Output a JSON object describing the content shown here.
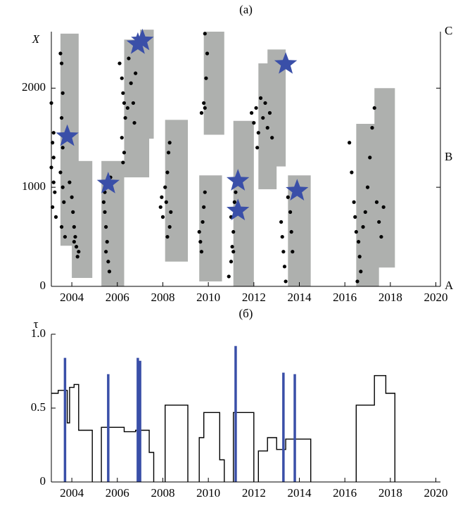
{
  "chart_data": [
    {
      "type": "scatter",
      "title": "(а)",
      "y_label": "X",
      "xlim": [
        2003.1,
        2020.2
      ],
      "xticks": [
        2004,
        2006,
        2008,
        2010,
        2012,
        2014,
        2016,
        2018,
        2020
      ],
      "ylim": [
        0,
        2570
      ],
      "yticks": [
        0,
        1000,
        2000
      ],
      "y2ticks": [
        {
          "value": 0,
          "label": "A"
        },
        {
          "value": 1300,
          "label": "B"
        },
        {
          "value": 2570,
          "label": "C"
        }
      ],
      "y2_minor_ticks": [
        1000,
        2000
      ],
      "rects": {
        "color": "#aeb0ae",
        "values": [
          [
            2003.5,
            2004.3,
            410,
            2550
          ],
          [
            2004.0,
            2004.9,
            85,
            1265
          ],
          [
            2005.3,
            2006.3,
            0,
            1265
          ],
          [
            2006.3,
            2007.4,
            1100,
            2490
          ],
          [
            2007.0,
            2007.6,
            1490,
            2590
          ],
          [
            2008.1,
            2009.1,
            250,
            1680
          ],
          [
            2009.6,
            2010.6,
            50,
            1120
          ],
          [
            2009.8,
            2010.7,
            1530,
            2570
          ],
          [
            2011.1,
            2012.0,
            0,
            1670
          ],
          [
            2012.2,
            2013.0,
            980,
            2250
          ],
          [
            2012.6,
            2013.4,
            1210,
            2390
          ],
          [
            2013.5,
            2014.5,
            0,
            1120
          ],
          [
            2016.5,
            2017.5,
            0,
            1640
          ],
          [
            2017.3,
            2018.2,
            190,
            2000
          ]
        ]
      },
      "points": {
        "color": "#000000",
        "values": [
          [
            2003.1,
            1850
          ],
          [
            2003.15,
            1450
          ],
          [
            2003.2,
            1300
          ],
          [
            2003.1,
            1200
          ],
          [
            2003.2,
            1050
          ],
          [
            2003.25,
            950
          ],
          [
            2003.15,
            800
          ],
          [
            2003.3,
            700
          ],
          [
            2003.2,
            1550
          ],
          [
            2003.5,
            2350
          ],
          [
            2003.55,
            2250
          ],
          [
            2003.6,
            1950
          ],
          [
            2003.55,
            1700
          ],
          [
            2003.6,
            1400
          ],
          [
            2003.5,
            1150
          ],
          [
            2003.6,
            1000
          ],
          [
            2003.65,
            850
          ],
          [
            2003.55,
            600
          ],
          [
            2003.7,
            500
          ],
          [
            2003.9,
            1050
          ],
          [
            2004.0,
            900
          ],
          [
            2004.05,
            750
          ],
          [
            2004.1,
            600
          ],
          [
            2004.15,
            500
          ],
          [
            2004.2,
            400
          ],
          [
            2004.25,
            300
          ],
          [
            2004.3,
            350
          ],
          [
            2004.1,
            450
          ],
          [
            2005.4,
            850
          ],
          [
            2005.45,
            750
          ],
          [
            2005.5,
            600
          ],
          [
            2005.55,
            450
          ],
          [
            2005.5,
            350
          ],
          [
            2005.6,
            250
          ],
          [
            2005.65,
            150
          ],
          [
            2005.45,
            950
          ],
          [
            2005.7,
            1100
          ],
          [
            2006.1,
            2250
          ],
          [
            2006.2,
            2100
          ],
          [
            2006.25,
            1950
          ],
          [
            2006.3,
            1850
          ],
          [
            2006.35,
            1700
          ],
          [
            2006.2,
            1500
          ],
          [
            2006.3,
            1350
          ],
          [
            2006.25,
            1250
          ],
          [
            2006.5,
            2300
          ],
          [
            2006.6,
            2050
          ],
          [
            2006.7,
            1850
          ],
          [
            2006.75,
            1650
          ],
          [
            2006.8,
            2150
          ],
          [
            2006.45,
            1800
          ],
          [
            2007.9,
            800
          ],
          [
            2007.95,
            900
          ],
          [
            2008.0,
            700
          ],
          [
            2008.1,
            1000
          ],
          [
            2008.15,
            850
          ],
          [
            2008.2,
            1150
          ],
          [
            2008.25,
            1350
          ],
          [
            2008.3,
            1450
          ],
          [
            2008.35,
            750
          ],
          [
            2008.2,
            500
          ],
          [
            2008.3,
            600
          ],
          [
            2009.6,
            550
          ],
          [
            2009.65,
            450
          ],
          [
            2009.7,
            350
          ],
          [
            2009.75,
            650
          ],
          [
            2009.8,
            800
          ],
          [
            2009.85,
            950
          ],
          [
            2009.7,
            1750
          ],
          [
            2009.8,
            1850
          ],
          [
            2009.85,
            1800
          ],
          [
            2009.9,
            2100
          ],
          [
            2009.95,
            2350
          ],
          [
            2009.85,
            2550
          ],
          [
            2010.9,
            100
          ],
          [
            2011.0,
            250
          ],
          [
            2011.05,
            400
          ],
          [
            2011.1,
            550
          ],
          [
            2011.0,
            700
          ],
          [
            2011.15,
            850
          ],
          [
            2011.2,
            950
          ],
          [
            2011.1,
            350
          ],
          [
            2011.25,
            1050
          ],
          [
            2011.9,
            1750
          ],
          [
            2012.0,
            1650
          ],
          [
            2012.1,
            1800
          ],
          [
            2012.2,
            1550
          ],
          [
            2012.3,
            1900
          ],
          [
            2012.4,
            1700
          ],
          [
            2012.5,
            1850
          ],
          [
            2012.6,
            1600
          ],
          [
            2012.7,
            1750
          ],
          [
            2012.8,
            1500
          ],
          [
            2012.15,
            1400
          ],
          [
            2013.2,
            650
          ],
          [
            2013.25,
            500
          ],
          [
            2013.3,
            350
          ],
          [
            2013.35,
            200
          ],
          [
            2013.4,
            50
          ],
          [
            2013.5,
            900
          ],
          [
            2013.6,
            750
          ],
          [
            2013.65,
            550
          ],
          [
            2013.7,
            350
          ],
          [
            2016.2,
            1450
          ],
          [
            2016.3,
            1150
          ],
          [
            2016.4,
            850
          ],
          [
            2016.45,
            700
          ],
          [
            2016.5,
            550
          ],
          [
            2016.6,
            450
          ],
          [
            2016.65,
            300
          ],
          [
            2016.7,
            150
          ],
          [
            2016.8,
            600
          ],
          [
            2016.9,
            750
          ],
          [
            2017.0,
            1000
          ],
          [
            2017.1,
            1300
          ],
          [
            2017.2,
            1600
          ],
          [
            2017.3,
            1800
          ],
          [
            2017.4,
            850
          ],
          [
            2017.5,
            650
          ],
          [
            2017.6,
            500
          ],
          [
            2017.7,
            800
          ],
          [
            2016.55,
            50
          ]
        ]
      },
      "stars": {
        "color": "#3a4fa8",
        "values": [
          [
            2003.8,
            1514
          ],
          [
            2005.6,
            1036
          ],
          [
            2006.9,
            2443
          ],
          [
            2007.1,
            2480
          ],
          [
            2011.3,
            1064
          ],
          [
            2011.3,
            764
          ],
          [
            2013.4,
            2243
          ],
          [
            2013.9,
            964
          ]
        ]
      }
    },
    {
      "type": "line",
      "title": "(б)",
      "y_label": "τ",
      "xlim": [
        2003.1,
        2020.2
      ],
      "xticks": [
        2004,
        2006,
        2008,
        2010,
        2012,
        2014,
        2016,
        2018,
        2020
      ],
      "ylim": [
        0,
        1
      ],
      "yticks": [
        0,
        0.5,
        {
          "value": 1,
          "label": "1.0"
        }
      ],
      "series": [
        {
          "color": "#000000",
          "x": [
            2003.1,
            2003.4,
            2003.4,
            2003.8,
            2003.8,
            2003.9,
            2003.9,
            2004.1,
            2004.1,
            2004.3,
            2004.3,
            2004.9,
            2004.9,
            null,
            2005.3,
            2005.3,
            2006.3,
            2006.3,
            2006.8,
            2006.8,
            2007.4,
            2007.4,
            2007.6,
            2007.6,
            null,
            2008.1,
            2008.1,
            2009.1,
            2009.1,
            null,
            2009.6,
            2009.6,
            2009.8,
            2009.8,
            2010.5,
            2010.5,
            2010.7,
            2010.7,
            null,
            2011.1,
            2011.1,
            2012.0,
            2012.0,
            null,
            2012.2,
            2012.2,
            2012.6,
            2012.6,
            2013.0,
            2013.0,
            2013.4,
            2013.4,
            2014.5,
            2014.5,
            null,
            2016.5,
            2016.5,
            2017.3,
            2017.3,
            2017.8,
            2017.8,
            2018.2,
            2018.2
          ],
          "values": [
            0.6,
            0.6,
            0.62,
            0.62,
            0.4,
            0.4,
            0.64,
            0.64,
            0.66,
            0.66,
            0.35,
            0.35,
            0,
            null,
            0,
            0.37,
            0.37,
            0.34,
            0.34,
            0.35,
            0.35,
            0.2,
            0.2,
            0,
            null,
            0,
            0.52,
            0.52,
            0,
            null,
            0,
            0.3,
            0.3,
            0.47,
            0.47,
            0.15,
            0.15,
            0,
            null,
            0,
            0.47,
            0.47,
            0,
            null,
            0,
            0.21,
            0.21,
            0.3,
            0.3,
            0.22,
            0.22,
            0.29,
            0.29,
            0,
            null,
            0,
            0.52,
            0.52,
            0.72,
            0.72,
            0.6,
            0.6,
            0
          ]
        }
      ],
      "bars": {
        "color": "#3a4fa8",
        "x": [
          2003.7,
          2005.6,
          2006.9,
          2007.0,
          2011.2,
          2013.3,
          2013.8
        ],
        "values": [
          0.84,
          0.73,
          0.84,
          0.82,
          0.92,
          0.74,
          0.73
        ]
      }
    }
  ]
}
